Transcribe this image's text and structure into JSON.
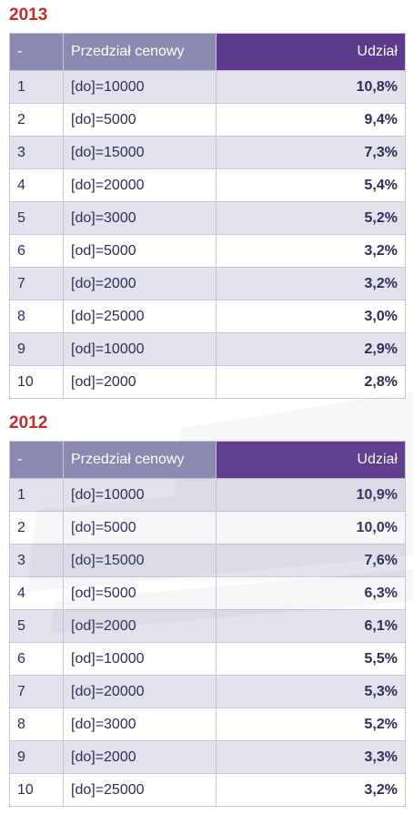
{
  "sections": [
    {
      "year": "2013",
      "headers": [
        "-",
        "Przedział cenowy",
        "Udział"
      ],
      "rows": [
        [
          "1",
          "[do]=10000",
          "10,8%"
        ],
        [
          "2",
          "[do]=5000",
          "9,4%"
        ],
        [
          "3",
          "[do]=15000",
          "7,3%"
        ],
        [
          "4",
          "[do]=20000",
          "5,4%"
        ],
        [
          "5",
          "[do]=3000",
          "5,2%"
        ],
        [
          "6",
          "[od]=5000",
          "3,2%"
        ],
        [
          "7",
          "[do]=2000",
          "3,2%"
        ],
        [
          "8",
          "[do]=25000",
          "3,0%"
        ],
        [
          "9",
          "[od]=10000",
          "2,9%"
        ],
        [
          "10",
          "[od]=2000",
          "2,8%"
        ]
      ]
    },
    {
      "year": "2012",
      "headers": [
        "-",
        "Przedział cenowy",
        "Udział"
      ],
      "rows": [
        [
          "1",
          "[do]=10000",
          "10,9%"
        ],
        [
          "2",
          "[do]=5000",
          "10,0%"
        ],
        [
          "3",
          "[do]=15000",
          "7,6%"
        ],
        [
          "4",
          "[od]=5000",
          "6,3%"
        ],
        [
          "5",
          "[od]=2000",
          "6,1%"
        ],
        [
          "6",
          "[od]=10000",
          "5,5%"
        ],
        [
          "7",
          "[do]=20000",
          "5,3%"
        ],
        [
          "8",
          "[do]=3000",
          "5,2%"
        ],
        [
          "9",
          "[do]=2000",
          "3,3%"
        ],
        [
          "10",
          "[do]=25000",
          "3,2%"
        ]
      ]
    }
  ],
  "colors": {
    "year": "#c0302a",
    "header_light": "#8a89b0",
    "header_dark": "#5e3a8c",
    "row_shade": "#e2e2ec",
    "text": "#2b2f5a"
  }
}
